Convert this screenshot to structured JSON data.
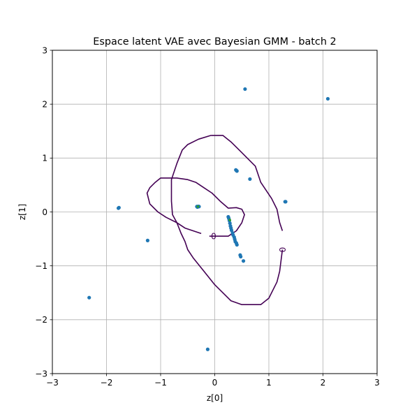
{
  "chart_data": {
    "type": "scatter",
    "title": "Espace latent VAE avec Bayesian GMM - batch 2",
    "xlabel": "z[0]",
    "ylabel": "z[1]",
    "xlim": [
      -3,
      3
    ],
    "ylim": [
      -3,
      3
    ],
    "xticks": [
      -3,
      -2,
      -1,
      0,
      1,
      2,
      3
    ],
    "yticks": [
      -3,
      -2,
      -1,
      0,
      1,
      2,
      3
    ],
    "xtick_labels": [
      "−3",
      "−2",
      "−1",
      "0",
      "1",
      "2",
      "3"
    ],
    "ytick_labels": [
      "−3",
      "−2",
      "−1",
      "0",
      "1",
      "2",
      "3"
    ],
    "grid": true,
    "series": [
      {
        "color": "#1f77b4",
        "points": [
          [
            0.56,
            2.28
          ],
          [
            2.09,
            2.1
          ],
          [
            0.39,
            0.78
          ],
          [
            0.4,
            0.77
          ],
          [
            0.41,
            0.76
          ],
          [
            0.65,
            0.61
          ],
          [
            1.3,
            0.19
          ],
          [
            1.31,
            0.19
          ],
          [
            -1.78,
            0.07
          ],
          [
            -1.77,
            0.08
          ],
          [
            -0.33,
            0.1
          ],
          [
            -0.31,
            0.1
          ],
          [
            -0.3,
            0.1
          ],
          [
            -0.29,
            0.1
          ],
          [
            -0.32,
            0.09
          ],
          [
            -1.24,
            -0.53
          ],
          [
            -2.32,
            -1.59
          ],
          [
            -0.13,
            -2.55
          ],
          [
            0.25,
            -0.09
          ],
          [
            0.26,
            -0.12
          ],
          [
            0.27,
            -0.16
          ],
          [
            0.28,
            -0.21
          ],
          [
            0.29,
            -0.26
          ],
          [
            0.3,
            -0.3
          ],
          [
            0.31,
            -0.34
          ],
          [
            0.33,
            -0.39
          ],
          [
            0.34,
            -0.43
          ],
          [
            0.36,
            -0.47
          ],
          [
            0.37,
            -0.51
          ],
          [
            0.38,
            -0.55
          ],
          [
            0.4,
            -0.58
          ],
          [
            0.41,
            -0.61
          ],
          [
            0.47,
            -0.8
          ],
          [
            0.48,
            -0.83
          ],
          [
            0.53,
            -0.91
          ]
        ]
      },
      {
        "color": "#2ca02c",
        "points": [
          [
            -0.31,
            0.1
          ],
          [
            0.28,
            -0.15
          ]
        ]
      }
    ],
    "contours": [
      {
        "level_label": "0",
        "color": "#440154",
        "paths": [
          [
            [
              -0.07,
              1.42
            ],
            [
              0.15,
              1.42
            ],
            [
              0.3,
              1.3
            ],
            [
              0.5,
              1.1
            ],
            [
              0.6,
              1.0
            ],
            [
              0.75,
              0.85
            ],
            [
              0.85,
              0.55
            ],
            [
              0.95,
              0.4
            ],
            [
              1.05,
              0.25
            ],
            [
              1.15,
              0.05
            ],
            [
              1.2,
              -0.2
            ],
            [
              1.25,
              -0.35
            ]
          ],
          [
            [
              1.25,
              -0.7
            ],
            [
              1.2,
              -1.1
            ],
            [
              1.15,
              -1.3
            ],
            [
              1.0,
              -1.6
            ],
            [
              0.85,
              -1.72
            ],
            [
              0.5,
              -1.72
            ],
            [
              0.3,
              -1.65
            ],
            [
              0.2,
              -1.55
            ],
            [
              0.0,
              -1.35
            ],
            [
              -0.2,
              -1.1
            ],
            [
              -0.4,
              -0.85
            ],
            [
              -0.5,
              -0.7
            ],
            [
              -0.55,
              -0.55
            ],
            [
              -0.62,
              -0.4
            ],
            [
              -0.7,
              -0.2
            ],
            [
              -0.78,
              -0.05
            ],
            [
              -0.8,
              0.2
            ],
            [
              -0.8,
              0.6
            ],
            [
              -0.7,
              0.9
            ],
            [
              -0.6,
              1.15
            ],
            [
              -0.5,
              1.25
            ],
            [
              -0.3,
              1.35
            ],
            [
              -0.07,
              1.42
            ]
          ],
          [
            [
              -0.1,
              -0.45
            ],
            [
              0.25,
              -0.45
            ],
            [
              0.4,
              -0.35
            ],
            [
              0.5,
              -0.2
            ],
            [
              0.55,
              -0.05
            ],
            [
              0.5,
              0.05
            ],
            [
              0.4,
              0.08
            ],
            [
              0.25,
              0.07
            ],
            [
              0.1,
              0.2
            ],
            [
              -0.05,
              0.35
            ],
            [
              -0.2,
              0.45
            ],
            [
              -0.35,
              0.55
            ],
            [
              -0.5,
              0.6
            ],
            [
              -0.7,
              0.63
            ],
            [
              -1.0,
              0.63
            ],
            [
              -1.1,
              0.55
            ],
            [
              -1.2,
              0.45
            ],
            [
              -1.25,
              0.35
            ],
            [
              -1.2,
              0.15
            ],
            [
              -1.05,
              0.0
            ],
            [
              -0.9,
              -0.1
            ],
            [
              -0.7,
              -0.2
            ],
            [
              -0.55,
              -0.3
            ],
            [
              -0.4,
              -0.35
            ],
            [
              -0.25,
              -0.4
            ]
          ]
        ],
        "labels": [
          {
            "text": "0",
            "x": -0.02,
            "y": -0.45,
            "rotation": 0
          },
          {
            "text": "0",
            "x": 1.25,
            "y": -0.7,
            "rotation": 90
          }
        ]
      }
    ]
  }
}
